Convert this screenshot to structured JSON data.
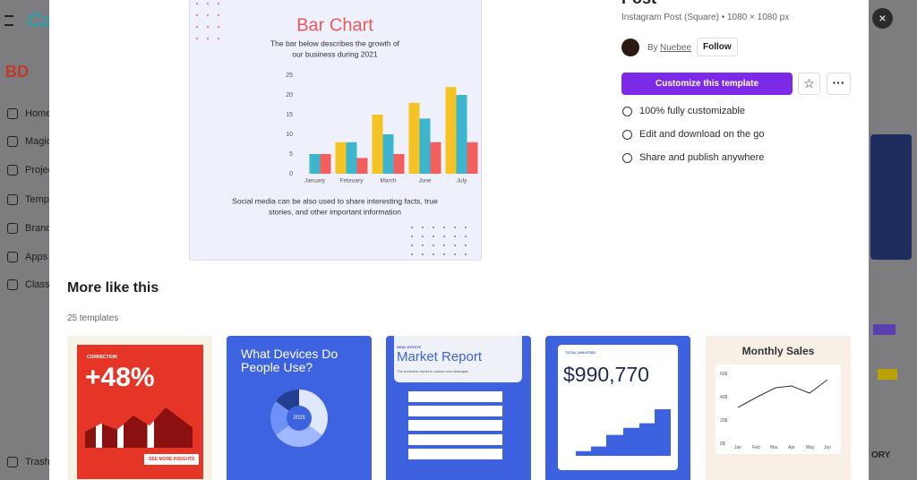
{
  "sidebar": {
    "logo": "Ca",
    "workspace": "BD",
    "items": [
      "Home",
      "Magic",
      "Projec",
      "Temp",
      "Brand",
      "Apps",
      "Classr",
      "Trash"
    ]
  },
  "close": "×",
  "preview": {
    "chart_data": {
      "type": "bar",
      "title": "Bar Chart",
      "subtitle": [
        "The bar below describes the growth of",
        "our business during 2021"
      ],
      "categories": [
        "January",
        "February",
        "March",
        "June",
        "July"
      ],
      "series": [
        {
          "color": "#f6c324",
          "values": [
            null,
            8,
            15,
            18,
            22
          ]
        },
        {
          "color": "#3db5cf",
          "values": [
            5,
            8,
            10,
            14,
            20
          ]
        },
        {
          "color": "#f25f5c",
          "values": [
            5,
            4,
            5,
            8,
            8
          ]
        }
      ],
      "ylim": [
        0,
        25
      ],
      "yticks": [
        0,
        5,
        10,
        15,
        20,
        25
      ]
    },
    "caption": [
      "Social media can be also used to share  interesting facts, true",
      "stories, and other important information"
    ]
  },
  "details": {
    "title": "Post",
    "format": "Instagram Post (Square) • 1080 × 1080 px",
    "by": "By",
    "author": "Nuebee",
    "follow": "Follow",
    "cta": "Customize this template",
    "features": [
      "100% fully customizable",
      "Edit and download on the go",
      "Share and publish anywhere"
    ]
  },
  "more": {
    "heading": "More like this",
    "count": "25 templates",
    "t1": {
      "tag": "CORRECTION",
      "big": "+48%",
      "button": "SEE MORE INSIGHTS"
    },
    "t2": {
      "title": "What Devices Do People Use?",
      "center": "2025"
    },
    "t3": {
      "tag": "REAL ESTATE",
      "title": "Market Report",
      "sub": "The exclusive report to unlock new strategies"
    },
    "t4": {
      "tag": "TOTAL UNLISTED",
      "big": "$990,770"
    },
    "t5": {
      "title": "Monthly Sales",
      "yaxis": [
        "60$",
        "40$",
        "20$",
        "0$"
      ],
      "months": [
        "Jan",
        "Feb",
        "Mar",
        "Apr",
        "May",
        "Jun"
      ]
    }
  },
  "background": {
    "corner": "ORY"
  }
}
